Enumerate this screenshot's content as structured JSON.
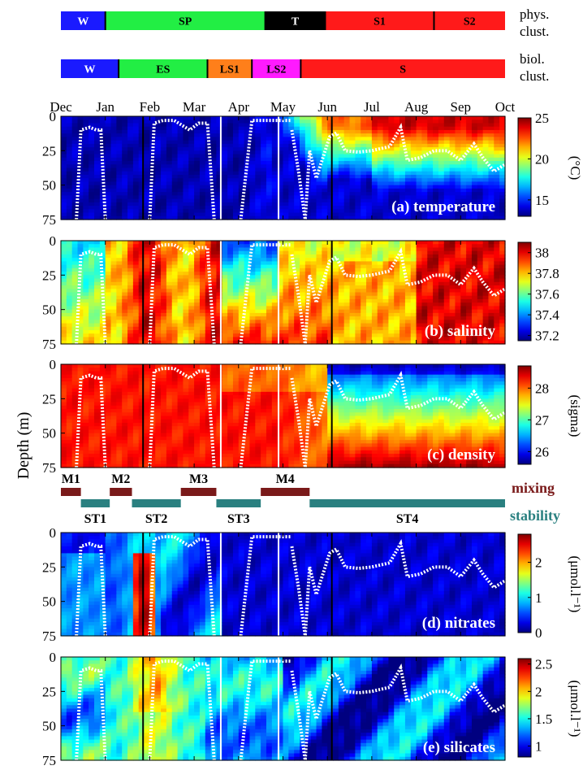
{
  "chart_data": {
    "type": "heatmap",
    "months": [
      "Dec",
      "Jan",
      "Feb",
      "Mar",
      "Apr",
      "May",
      "Jun",
      "Jul",
      "Aug",
      "Sep",
      "Oct"
    ],
    "ylabel": "Depth (m)",
    "depth_ticks": [
      "0",
      "25",
      "50",
      "75"
    ],
    "depth_range": [
      0,
      75
    ],
    "mld_profile": {
      "segment_1": {
        "x": [
          0.35,
          0.45,
          0.65,
          0.8,
          0.9,
          1.0
        ],
        "y": [
          75,
          10,
          8,
          10,
          10,
          75
        ]
      },
      "segment_2": {
        "x": [
          2.0,
          2.1,
          2.3,
          2.55,
          2.9,
          3.1,
          3.3,
          3.45
        ],
        "y": [
          75,
          5,
          3,
          3,
          10,
          5,
          5,
          75
        ]
      },
      "segment_3": {
        "x": [
          4.05,
          4.3,
          4.6,
          4.9,
          5.2
        ],
        "y": [
          75,
          3,
          3,
          3,
          3
        ]
      },
      "segment_4": {
        "x": [
          5.2,
          5.35,
          5.5,
          5.6,
          5.75,
          5.9,
          6.05,
          6.2,
          6.4,
          6.7,
          7.0,
          7.4,
          7.65,
          7.8,
          8.1,
          8.4,
          8.7,
          9.0,
          9.3,
          9.5,
          9.75,
          10.0
        ],
        "y": [
          10,
          40,
          75,
          25,
          45,
          30,
          15,
          12,
          25,
          26,
          25,
          22,
          8,
          32,
          30,
          25,
          25,
          32,
          20,
          30,
          40,
          35
        ]
      }
    },
    "boundary_lines": [
      {
        "x": 1.85,
        "color": "black"
      },
      {
        "x": 3.6,
        "color": "white"
      },
      {
        "x": 4.9,
        "color": "white"
      },
      {
        "x": 6.1,
        "color": "black"
      }
    ],
    "panels": [
      {
        "label": "(a) temperature",
        "unit": "(°C)",
        "colorbar_ticks": [
          "25",
          "20",
          "15"
        ],
        "range": [
          13,
          25
        ],
        "colorbar_tick_values": [
          25,
          20,
          15
        ]
      },
      {
        "label": "(b) salinity",
        "unit": "",
        "colorbar_ticks": [
          "38",
          "37.8",
          "37.6",
          "37.4",
          "37.2"
        ],
        "range": [
          37.15,
          38.1
        ],
        "colorbar_tick_values": [
          38,
          37.8,
          37.6,
          37.4,
          37.2
        ]
      },
      {
        "label": "(c) density",
        "unit": "(sigma)",
        "colorbar_ticks": [
          "28",
          "27",
          "26"
        ],
        "range": [
          25.6,
          28.7
        ],
        "colorbar_tick_values": [
          28,
          27,
          26
        ]
      },
      {
        "label": "(d) nitrates",
        "unit": "(μmol.l⁻¹)",
        "colorbar_ticks": [
          "2",
          "1",
          "0"
        ],
        "range": [
          0,
          2.8
        ],
        "colorbar_tick_values": [
          2,
          1,
          0
        ]
      },
      {
        "label": "(e) silicates",
        "unit": "(μmol.l⁻¹)",
        "colorbar_ticks": [
          "2.5",
          "2",
          "1.5",
          "1"
        ],
        "range": [
          0.8,
          2.6
        ],
        "colorbar_tick_values": [
          2.5,
          2,
          1.5,
          1
        ]
      }
    ],
    "physical_clusters": {
      "label": [
        "phys.",
        "clust."
      ],
      "segments": [
        {
          "name": "W",
          "start": 0,
          "end": 1.0,
          "color": "#1a1aff"
        },
        {
          "name": "SP",
          "start": 1.0,
          "end": 4.6,
          "color": "#22ee44"
        },
        {
          "name": "T",
          "start": 4.6,
          "end": 5.95,
          "color": "#000000"
        },
        {
          "name": "S1",
          "start": 5.95,
          "end": 8.4,
          "color": "#ff1a1a"
        },
        {
          "name": "S2",
          "start": 8.4,
          "end": 10.0,
          "color": "#ff1a1a"
        }
      ]
    },
    "biological_clusters": {
      "label": [
        "biol.",
        "clust."
      ],
      "segments": [
        {
          "name": "W",
          "start": 0,
          "end": 1.3,
          "color": "#1a1aff"
        },
        {
          "name": "ES",
          "start": 1.3,
          "end": 3.3,
          "color": "#22ee44"
        },
        {
          "name": "LS1",
          "start": 3.3,
          "end": 4.3,
          "color": "#ff7f1a"
        },
        {
          "name": "LS2",
          "start": 4.3,
          "end": 5.4,
          "color": "#ff1aff"
        },
        {
          "name": "S",
          "start": 5.4,
          "end": 10.0,
          "color": "#ff1a1a"
        }
      ]
    },
    "mixing_stability": {
      "mixing_label": "mixing",
      "stability_label": "stability",
      "mixing_color": "#7a1a1a",
      "stability_color": "#2a8080",
      "mixing": [
        {
          "name": "M1",
          "start": 0,
          "end": 0.45
        },
        {
          "name": "M2",
          "start": 1.1,
          "end": 1.6
        },
        {
          "name": "M3",
          "start": 2.7,
          "end": 3.5
        },
        {
          "name": "M4",
          "start": 4.5,
          "end": 5.6
        }
      ],
      "stability": [
        {
          "name": "ST1",
          "start": 0.45,
          "end": 1.1
        },
        {
          "name": "ST2",
          "start": 1.6,
          "end": 2.7
        },
        {
          "name": "ST3",
          "start": 3.5,
          "end": 4.5
        },
        {
          "name": "ST4",
          "start": 5.6,
          "end": 10.0
        }
      ]
    }
  }
}
